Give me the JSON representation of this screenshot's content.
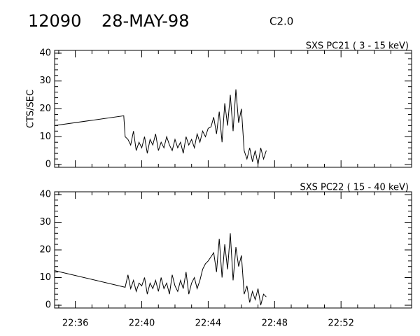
{
  "header": {
    "id": "12090",
    "date": "28-MAY-98",
    "class": "C2.0"
  },
  "chart_data": [
    {
      "type": "line",
      "title": "SXS PC21  (  3 - 15 keV)",
      "y_label": "CTS/SEC",
      "color": "#000000",
      "xlim": [
        "22:34:45",
        "22:56:15"
      ],
      "ylim": [
        -1,
        41
      ],
      "yticks": [
        0,
        10,
        20,
        30,
        40
      ],
      "x": [
        "22:34:45",
        "22:38:55",
        "22:39:00",
        "22:39:10",
        "22:39:20",
        "22:39:30",
        "22:39:40",
        "22:39:50",
        "22:40:00",
        "22:40:10",
        "22:40:20",
        "22:40:30",
        "22:40:40",
        "22:40:50",
        "22:41:00",
        "22:41:10",
        "22:41:20",
        "22:41:30",
        "22:41:40",
        "22:41:50",
        "22:42:00",
        "22:42:10",
        "22:42:20",
        "22:42:30",
        "22:42:40",
        "22:42:50",
        "22:43:00",
        "22:43:10",
        "22:43:20",
        "22:43:30",
        "22:43:40",
        "22:43:50",
        "22:44:00",
        "22:44:10",
        "22:44:20",
        "22:44:30",
        "22:44:40",
        "22:44:50",
        "22:45:00",
        "22:45:10",
        "22:45:20",
        "22:45:30",
        "22:45:40",
        "22:45:50",
        "22:46:00",
        "22:46:10",
        "22:46:20",
        "22:46:30",
        "22:46:40",
        "22:46:50",
        "22:47:00",
        "22:47:10",
        "22:47:20",
        "22:47:30"
      ],
      "values": [
        14,
        17.5,
        10,
        9,
        7,
        12,
        5,
        8,
        6,
        10,
        4,
        9,
        7,
        11,
        5,
        8,
        6,
        10,
        7,
        5,
        9,
        6,
        8,
        4,
        10,
        7,
        9,
        6,
        11,
        8,
        12,
        10,
        13,
        13.5,
        17,
        11,
        19,
        8,
        22,
        14,
        25,
        12,
        27,
        15,
        20,
        5,
        2,
        6,
        1,
        5,
        0,
        6,
        2,
        5
      ]
    },
    {
      "type": "line",
      "title": "SXS PC22  ( 15 - 40 keV)",
      "color": "#000000",
      "xlim": [
        "22:34:45",
        "22:56:15"
      ],
      "ylim": [
        -1,
        41
      ],
      "yticks": [
        0,
        10,
        20,
        30,
        40
      ],
      "xticks": [
        "22:36",
        "22:40",
        "22:44",
        "22:48",
        "22:52"
      ],
      "x": [
        "22:34:45",
        "22:39:00",
        "22:39:10",
        "22:39:20",
        "22:39:30",
        "22:39:40",
        "22:39:50",
        "22:40:00",
        "22:40:10",
        "22:40:20",
        "22:40:30",
        "22:40:40",
        "22:40:50",
        "22:41:00",
        "22:41:10",
        "22:41:20",
        "22:41:30",
        "22:41:40",
        "22:41:50",
        "22:42:00",
        "22:42:10",
        "22:42:20",
        "22:42:30",
        "22:42:40",
        "22:42:50",
        "22:43:00",
        "22:43:10",
        "22:43:20",
        "22:43:30",
        "22:43:40",
        "22:43:50",
        "22:44:00",
        "22:44:10",
        "22:44:20",
        "22:44:30",
        "22:44:40",
        "22:44:50",
        "22:45:00",
        "22:45:10",
        "22:45:20",
        "22:45:30",
        "22:45:40",
        "22:45:50",
        "22:46:00",
        "22:46:10",
        "22:46:20",
        "22:46:30",
        "22:46:40",
        "22:46:50",
        "22:47:00",
        "22:47:10",
        "22:47:20",
        "22:47:30"
      ],
      "values": [
        12.5,
        6.5,
        11,
        6,
        9,
        5,
        8,
        7,
        10,
        4,
        8,
        6,
        9,
        5,
        10,
        6,
        8,
        4,
        11,
        7,
        5,
        9,
        6,
        12,
        4,
        8,
        10,
        6,
        9,
        13,
        15,
        16,
        17.5,
        19,
        12,
        24,
        10,
        22,
        13,
        26,
        9,
        21,
        14,
        18,
        4,
        7,
        1,
        5,
        2,
        6,
        0,
        4,
        3
      ]
    }
  ]
}
